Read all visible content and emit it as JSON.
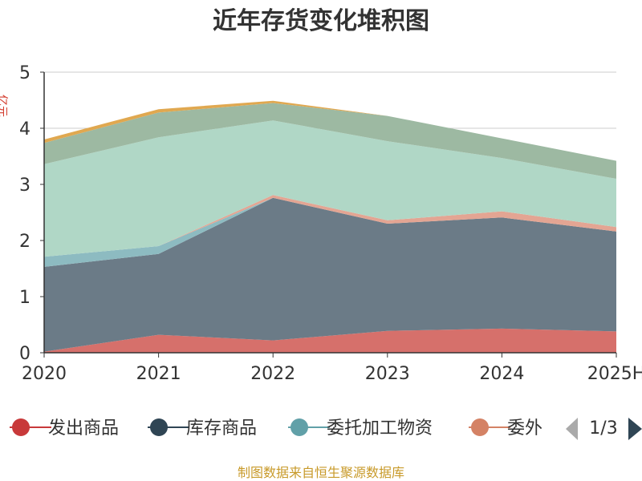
{
  "chart_data": {
    "type": "area",
    "stacked": true,
    "title": "近年存货变化堆积图",
    "ylabel": "亿元",
    "ylim": [
      0,
      5
    ],
    "y_ticks": [
      0,
      1,
      2,
      3,
      4,
      5
    ],
    "grid": true,
    "categories": [
      "2020",
      "2021",
      "2022",
      "2023",
      "2024",
      "2025H"
    ],
    "series": [
      {
        "name": "发出商品",
        "color": "#d6706b",
        "values": [
          0.02,
          0.32,
          0.22,
          0.39,
          0.43,
          0.38
        ]
      },
      {
        "name": "库存商品",
        "color": "#6b7b87",
        "values": [
          1.51,
          1.44,
          2.54,
          1.91,
          1.98,
          1.78
        ]
      },
      {
        "name": "委托加工物资",
        "color": "#8dbbc1",
        "values": [
          0.18,
          0.14,
          0.0,
          0.0,
          0.0,
          0.0
        ]
      },
      {
        "name": "委外",
        "color": "#e3a593",
        "values": [
          0.0,
          0.0,
          0.05,
          0.06,
          0.11,
          0.08
        ]
      },
      {
        "name": "",
        "color": "#b0d7c6",
        "values": [
          1.65,
          1.94,
          1.33,
          1.41,
          0.95,
          0.86
        ]
      },
      {
        "name": "",
        "color": "#9db9a2",
        "values": [
          0.38,
          0.44,
          0.31,
          0.45,
          0.35,
          0.32
        ]
      },
      {
        "name": "",
        "color": "#e0a850",
        "values": [
          0.06,
          0.06,
          0.04,
          0.0,
          0.0,
          0.0
        ]
      }
    ],
    "legend": {
      "position": "bottom",
      "page": "1/3",
      "items": [
        {
          "name": "发出商品",
          "color": "#c8393a"
        },
        {
          "name": "库存商品",
          "color": "#2f4554"
        },
        {
          "name": "委托加工物资",
          "color": "#61a0a8"
        },
        {
          "name": "委外",
          "color": "#d48265"
        }
      ]
    },
    "source": "制图数据来自恒生聚源数据库"
  }
}
